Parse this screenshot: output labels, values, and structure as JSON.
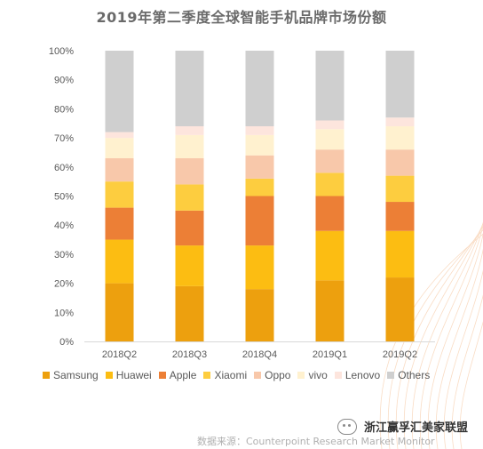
{
  "chart_data": {
    "type": "bar",
    "stacked": true,
    "title": "2019年第二季度全球智能手机品牌市场份额",
    "categories": [
      "2018Q2",
      "2018Q3",
      "2018Q4",
      "2019Q1",
      "2019Q2"
    ],
    "yticks": [
      "0%",
      "10%",
      "20%",
      "30%",
      "40%",
      "50%",
      "60%",
      "70%",
      "80%",
      "90%",
      "100%"
    ],
    "ylim": [
      0,
      100
    ],
    "grid": false,
    "legend_position": "bottom",
    "series": [
      {
        "name": "Samsung",
        "color": "#eda00e",
        "values": [
          20,
          19,
          18,
          21,
          22
        ]
      },
      {
        "name": "Huawei",
        "color": "#fcbd12",
        "values": [
          15,
          14,
          15,
          17,
          16
        ]
      },
      {
        "name": "Apple",
        "color": "#ec7f36",
        "values": [
          11,
          12,
          17,
          12,
          10
        ]
      },
      {
        "name": "Xiaomi",
        "color": "#fdcd3f",
        "values": [
          9,
          9,
          6,
          8,
          9
        ]
      },
      {
        "name": "Oppo",
        "color": "#f8c8aa",
        "values": [
          8,
          9,
          8,
          8,
          9
        ]
      },
      {
        "name": "vivo",
        "color": "#fff1cf",
        "values": [
          7,
          8,
          7,
          7,
          8
        ]
      },
      {
        "name": "Lenovo",
        "color": "#fde5dd",
        "values": [
          2,
          3,
          3,
          3,
          3
        ]
      },
      {
        "name": "Others",
        "color": "#cfcfcf",
        "values": [
          28,
          26,
          26,
          24,
          23
        ]
      }
    ]
  },
  "watermark_text": "浙江赢孚汇美家联盟",
  "source_note": "数据来源：Counterpoint Research Market Monitor"
}
